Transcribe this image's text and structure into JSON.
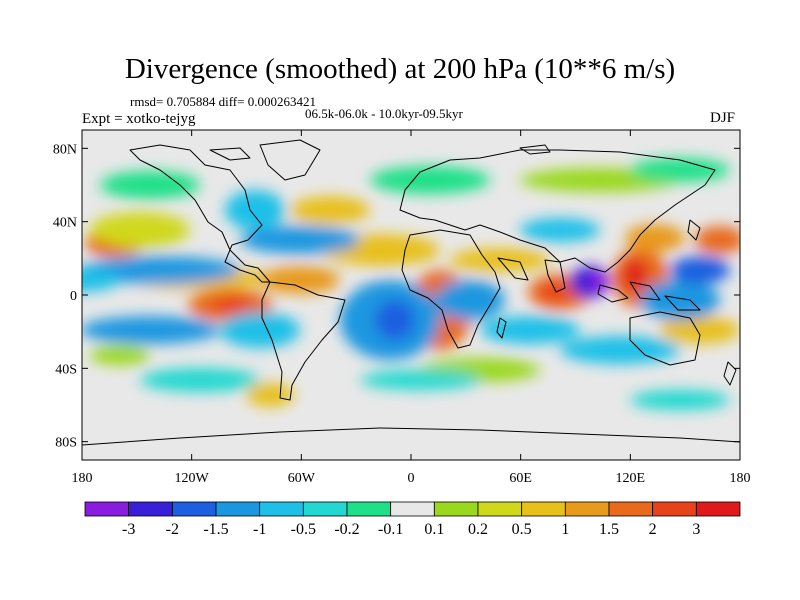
{
  "map": {
    "title": "Divergence (smoothed) at 200 hPa (10**6 m/s)",
    "stats_text": "rmsd= 0.705884 diff= 0.000263421",
    "period_text": "06.5k-06.0k - 10.0kyr-09.5kyr",
    "experiment_text": "Expt = xotko-tejyg",
    "season_text": "DJF",
    "projection": "cylindrical equidistant",
    "lon_range": [
      -180,
      180
    ],
    "lat_range": [
      -90,
      90
    ],
    "lat_ticks": [
      {
        "value": 80,
        "label": "80N"
      },
      {
        "value": 40,
        "label": "40N"
      },
      {
        "value": 0,
        "label": "0"
      },
      {
        "value": -40,
        "label": "40S"
      },
      {
        "value": -80,
        "label": "80S"
      }
    ],
    "lon_ticks": [
      {
        "value": -180,
        "label": "180"
      },
      {
        "value": -120,
        "label": "120W"
      },
      {
        "value": -60,
        "label": "60W"
      },
      {
        "value": 0,
        "label": "0"
      },
      {
        "value": 60,
        "label": "60E"
      },
      {
        "value": 120,
        "label": "120E"
      },
      {
        "value": 180,
        "label": "180"
      }
    ]
  },
  "colorbar": {
    "colors": [
      "#8a1ce0",
      "#3a1fd8",
      "#1d5fe0",
      "#1a97e0",
      "#1ec0e8",
      "#22d8d0",
      "#1ee088",
      "#e8e8e8",
      "#9ad81e",
      "#d0d81a",
      "#e8c01a",
      "#e89a1a",
      "#e86a1a",
      "#e8421a",
      "#e01a1a"
    ],
    "labels": [
      "-3",
      "-2",
      "-1.5",
      "-1",
      "-0.5",
      "-0.2",
      "-0.1",
      "0.1",
      "0.2",
      "0.5",
      "1",
      "1.5",
      "2",
      "3"
    ]
  }
}
